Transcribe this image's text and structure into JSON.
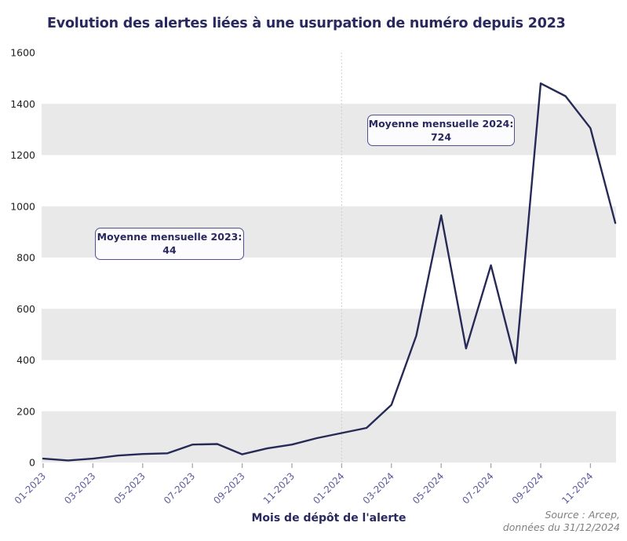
{
  "title": "Evolution des alertes liées à une usurpation de numéro depuis 2023",
  "chart_data": {
    "type": "line",
    "title": "Evolution des alertes liées à une usurpation de numéro depuis 2023",
    "xlabel": "Mois de dépôt de l'alerte",
    "ylabel": "",
    "x": [
      "01-2023",
      "02-2023",
      "03-2023",
      "04-2023",
      "05-2023",
      "06-2023",
      "07-2023",
      "08-2023",
      "09-2023",
      "10-2023",
      "11-2023",
      "12-2023",
      "01-2024",
      "02-2024",
      "03-2024",
      "04-2024",
      "05-2024",
      "06-2024",
      "07-2024",
      "08-2024",
      "09-2024",
      "10-2024",
      "11-2024",
      "12-2024"
    ],
    "values": [
      15,
      8,
      15,
      27,
      33,
      36,
      70,
      72,
      32,
      55,
      70,
      95,
      115,
      135,
      225,
      495,
      965,
      445,
      770,
      388,
      1480,
      1430,
      1305,
      935
    ],
    "x_tick_labels": [
      "01-2023",
      "03-2023",
      "05-2023",
      "07-2023",
      "09-2023",
      "11-2023",
      "01-2024",
      "03-2024",
      "05-2024",
      "07-2024",
      "09-2024",
      "11-2024"
    ],
    "y_ticks": [
      0,
      200,
      400,
      600,
      800,
      1000,
      1200,
      1400,
      1600
    ],
    "ylim": [
      0,
      1600
    ],
    "grid_bands": [
      [
        0,
        200
      ],
      [
        400,
        600
      ],
      [
        800,
        1000
      ],
      [
        1200,
        1400
      ]
    ],
    "divider_at": "01-2024",
    "legend": "none",
    "annotations": [
      {
        "line1": "Moyenne mensuelle 2023:",
        "line2": "44"
      },
      {
        "line1": "Moyenne mensuelle 2024:",
        "line2": "724"
      }
    ]
  },
  "source": {
    "line1": "Source : Arcep,",
    "line2": "données du 31/12/2024"
  },
  "colors": {
    "title": "#29295f",
    "line": "#262a56",
    "band": "#e9e9e9",
    "x_tick_label": "#5c5c9e",
    "y_tick_label": "#222222",
    "tick_mark": "#a6a6a6",
    "annotation_border": "#4f4f92",
    "annotation_text": "#29295f",
    "divider": "#cccccc",
    "source_text": "#7f7f7f"
  }
}
